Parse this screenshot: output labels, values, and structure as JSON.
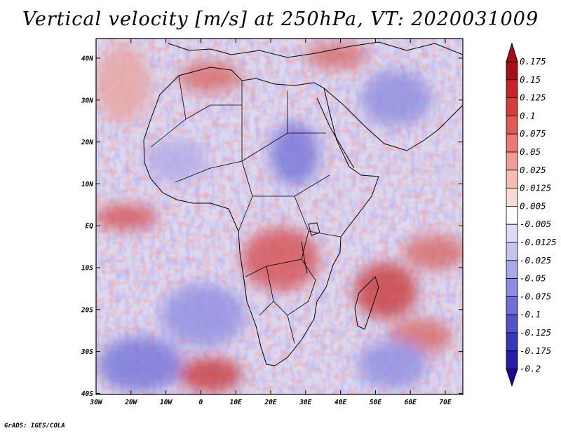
{
  "title": "Vertical velocity [m/s] at 250hPa, VT: 2020031009",
  "credit": "GrADS: IGES/COLA",
  "map": {
    "region": "Africa",
    "lon_range": [
      -30,
      75
    ],
    "lat_range": [
      -40,
      45
    ],
    "x_ticks": [
      "30W",
      "20W",
      "10W",
      "0",
      "10E",
      "20E",
      "30E",
      "40E",
      "50E",
      "60E",
      "70E"
    ],
    "y_ticks": [
      "40N",
      "30N",
      "20N",
      "10N",
      "EQ",
      "10S",
      "20S",
      "30S",
      "40S"
    ]
  },
  "colorbar": {
    "labels": [
      "0.175",
      "0.15",
      "0.125",
      "0.1",
      "0.075",
      "0.05",
      "0.025",
      "0.0125",
      "0.005",
      "-0.005",
      "-0.0125",
      "-0.025",
      "-0.05",
      "-0.075",
      "-0.1",
      "-0.125",
      "-0.175",
      "-0.2"
    ],
    "colors": [
      "#a50f15",
      "#c8242a",
      "#d73c3c",
      "#e35a55",
      "#ec7a72",
      "#f29c93",
      "#f7bcb4",
      "#fbd9d4",
      "#ffffff",
      "#dcdcf6",
      "#c4c4f0",
      "#a9a9ea",
      "#8c8ce2",
      "#6f6fd8",
      "#5252cc",
      "#3838bb",
      "#2222a5"
    ],
    "top_color": "#a50f15",
    "bottom_color": "#1a0a99"
  }
}
